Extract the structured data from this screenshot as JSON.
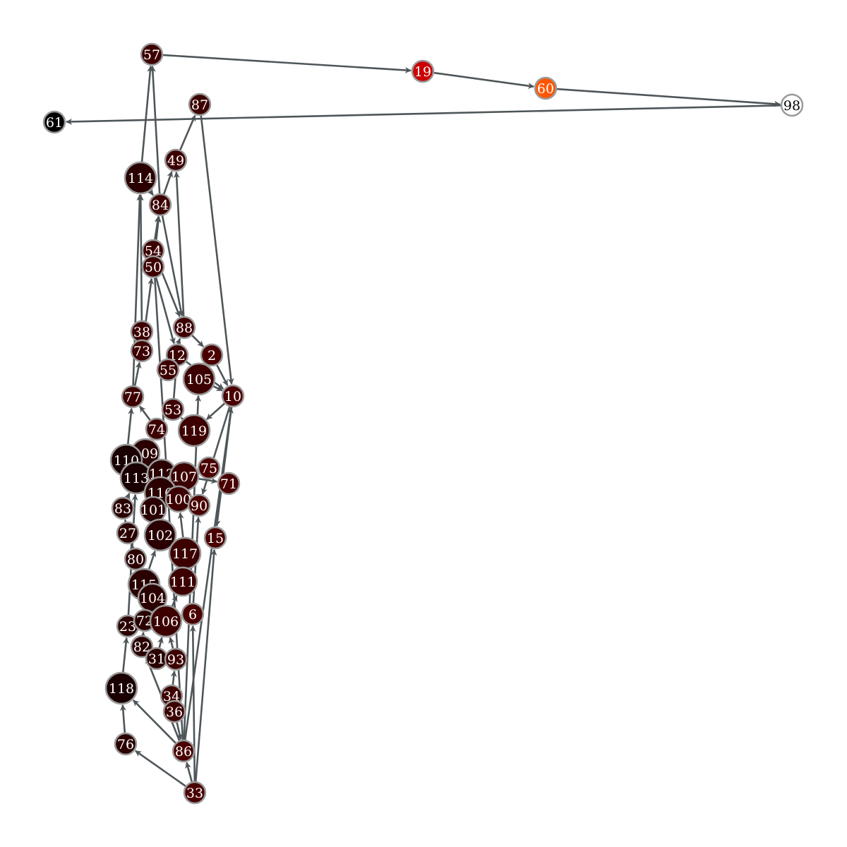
{
  "colors": {
    "edge": "#4f5659",
    "node_stroke": "#9a9a9a",
    "node_dark": "#3d0000",
    "node_darkest": "#1a0000",
    "node_black": "#000000",
    "node_red": "#cc0000",
    "node_orange": "#ff5500",
    "node_white": "#ffffff"
  },
  "nodes": [
    {
      "id": "57",
      "label": "57",
      "fill": "#3d0000"
    },
    {
      "id": "19",
      "label": "19",
      "fill": "#cc0000"
    },
    {
      "id": "60",
      "label": "60",
      "fill": "#ff5500"
    },
    {
      "id": "98",
      "label": "98",
      "fill": "#ffffff"
    },
    {
      "id": "61",
      "label": "61",
      "fill": "#000000"
    },
    {
      "id": "87",
      "label": "87",
      "fill": "#3d0000"
    },
    {
      "id": "49",
      "label": "49",
      "fill": "#3d0000"
    },
    {
      "id": "114",
      "label": "114",
      "fill": "#2a0000"
    },
    {
      "id": "84",
      "label": "84",
      "fill": "#3d0000"
    },
    {
      "id": "54",
      "label": "54",
      "fill": "#3d0000"
    },
    {
      "id": "50",
      "label": "50",
      "fill": "#3d0000"
    },
    {
      "id": "88",
      "label": "88",
      "fill": "#3d0000"
    },
    {
      "id": "38",
      "label": "38",
      "fill": "#3d0000"
    },
    {
      "id": "73",
      "label": "73",
      "fill": "#3d0000"
    },
    {
      "id": "12",
      "label": "12",
      "fill": "#3d0000"
    },
    {
      "id": "2",
      "label": "2",
      "fill": "#4a0000"
    },
    {
      "id": "55",
      "label": "55",
      "fill": "#3d0000"
    },
    {
      "id": "105",
      "label": "105",
      "fill": "#3d0000"
    },
    {
      "id": "10",
      "label": "10",
      "fill": "#4a0000"
    },
    {
      "id": "77",
      "label": "77",
      "fill": "#3d0000"
    },
    {
      "id": "53",
      "label": "53",
      "fill": "#3d0000"
    },
    {
      "id": "74",
      "label": "74",
      "fill": "#3d0000"
    },
    {
      "id": "119",
      "label": "119",
      "fill": "#3d0000"
    },
    {
      "id": "109",
      "label": "109",
      "fill": "#2a0000"
    },
    {
      "id": "110",
      "label": "110",
      "fill": "#1a0000"
    },
    {
      "id": "113",
      "label": "113",
      "fill": "#1a0000"
    },
    {
      "id": "112",
      "label": "112",
      "fill": "#2a0000"
    },
    {
      "id": "107",
      "label": "107",
      "fill": "#3d0000"
    },
    {
      "id": "75",
      "label": "75",
      "fill": "#4a0000"
    },
    {
      "id": "71",
      "label": "71",
      "fill": "#4a0000"
    },
    {
      "id": "116",
      "label": "116",
      "fill": "#2a0000"
    },
    {
      "id": "100",
      "label": "100",
      "fill": "#3d0000"
    },
    {
      "id": "90",
      "label": "90",
      "fill": "#4a0000"
    },
    {
      "id": "83",
      "label": "83",
      "fill": "#2a0000"
    },
    {
      "id": "101",
      "label": "101",
      "fill": "#2a0000"
    },
    {
      "id": "27",
      "label": "27",
      "fill": "#2a0000"
    },
    {
      "id": "102",
      "label": "102",
      "fill": "#2a0000"
    },
    {
      "id": "15",
      "label": "15",
      "fill": "#4a0000"
    },
    {
      "id": "117",
      "label": "117",
      "fill": "#3d0000"
    },
    {
      "id": "80",
      "label": "80",
      "fill": "#2a0000"
    },
    {
      "id": "115",
      "label": "115",
      "fill": "#2a0000"
    },
    {
      "id": "111",
      "label": "111",
      "fill": "#3d0000"
    },
    {
      "id": "104",
      "label": "104",
      "fill": "#2a0000"
    },
    {
      "id": "6",
      "label": "6",
      "fill": "#4a0000"
    },
    {
      "id": "23",
      "label": "23",
      "fill": "#2a0000"
    },
    {
      "id": "72",
      "label": "72",
      "fill": "#2a0000"
    },
    {
      "id": "106",
      "label": "106",
      "fill": "#3d0000"
    },
    {
      "id": "82",
      "label": "82",
      "fill": "#2a0000"
    },
    {
      "id": "31",
      "label": "31",
      "fill": "#2a0000"
    },
    {
      "id": "93",
      "label": "93",
      "fill": "#3d0000"
    },
    {
      "id": "118",
      "label": "118",
      "fill": "#1a0000"
    },
    {
      "id": "34",
      "label": "34",
      "fill": "#3d0000"
    },
    {
      "id": "36",
      "label": "36",
      "fill": "#3d0000"
    },
    {
      "id": "76",
      "label": "76",
      "fill": "#2a0000"
    },
    {
      "id": "86",
      "label": "86",
      "fill": "#4a0000"
    },
    {
      "id": "33",
      "label": "33",
      "fill": "#4a0000"
    }
  ],
  "edges": [
    [
      "57",
      "19"
    ],
    [
      "19",
      "60"
    ],
    [
      "60",
      "98"
    ],
    [
      "98",
      "61"
    ],
    [
      "114",
      "57"
    ],
    [
      "84",
      "57"
    ],
    [
      "49",
      "87"
    ],
    [
      "87",
      "10"
    ],
    [
      "84",
      "49"
    ],
    [
      "88",
      "49"
    ],
    [
      "50",
      "84"
    ],
    [
      "54",
      "84"
    ],
    [
      "38",
      "114"
    ],
    [
      "77",
      "114"
    ],
    [
      "73",
      "50"
    ],
    [
      "88",
      "2"
    ],
    [
      "2",
      "10"
    ],
    [
      "12",
      "10"
    ],
    [
      "55",
      "88"
    ],
    [
      "105",
      "10"
    ],
    [
      "10",
      "119"
    ],
    [
      "10",
      "90"
    ],
    [
      "10",
      "15"
    ],
    [
      "77",
      "73"
    ],
    [
      "53",
      "12"
    ],
    [
      "74",
      "77"
    ],
    [
      "119",
      "53"
    ],
    [
      "109",
      "74"
    ],
    [
      "110",
      "77"
    ],
    [
      "113",
      "110"
    ],
    [
      "112",
      "75"
    ],
    [
      "107",
      "71"
    ],
    [
      "116",
      "112"
    ],
    [
      "100",
      "107"
    ],
    [
      "83",
      "113"
    ],
    [
      "101",
      "116"
    ],
    [
      "27",
      "83"
    ],
    [
      "102",
      "101"
    ],
    [
      "117",
      "100"
    ],
    [
      "80",
      "27"
    ],
    [
      "115",
      "102"
    ],
    [
      "111",
      "117"
    ],
    [
      "104",
      "115"
    ],
    [
      "6",
      "90"
    ],
    [
      "23",
      "113"
    ],
    [
      "72",
      "104"
    ],
    [
      "106",
      "111"
    ],
    [
      "82",
      "72"
    ],
    [
      "31",
      "106"
    ],
    [
      "93",
      "106"
    ],
    [
      "118",
      "23"
    ],
    [
      "34",
      "93"
    ],
    [
      "36",
      "34"
    ],
    [
      "76",
      "118"
    ],
    [
      "86",
      "82"
    ],
    [
      "86",
      "118"
    ],
    [
      "33",
      "76"
    ],
    [
      "33",
      "86"
    ],
    [
      "33",
      "15"
    ],
    [
      "33",
      "6"
    ],
    [
      "86",
      "54"
    ],
    [
      "86",
      "10"
    ],
    [
      "86",
      "105"
    ],
    [
      "36",
      "86"
    ],
    [
      "84",
      "88"
    ],
    [
      "50",
      "12"
    ],
    [
      "54",
      "88"
    ],
    [
      "114",
      "84"
    ]
  ]
}
